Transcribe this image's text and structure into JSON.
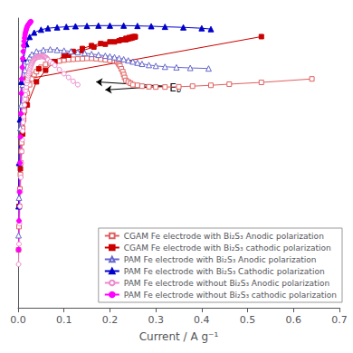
{
  "chart_data": {
    "type": "line",
    "xlabel": "Current / A g⁻¹",
    "xlim": [
      0,
      0.7
    ],
    "xticks": [
      {
        "value": 0,
        "label": "0.0"
      },
      0.1,
      0.2,
      0.3,
      0.4,
      0.5,
      0.6,
      0.7
    ],
    "ylim": [
      0,
      10
    ],
    "tick_labels": "x",
    "grid": false,
    "legend": "lower right",
    "series": [
      {
        "name": "CGAM Fe electrode with Bi₂S₃ Anodic polarization",
        "color": "#e06060",
        "marker": "open square",
        "line_style": "solid",
        "x": [
          0.001,
          0.002,
          0.003,
          0.004,
          0.005,
          0.006,
          0.007,
          0.008,
          0.009,
          0.01,
          0.012,
          0.014,
          0.016,
          0.018,
          0.02,
          0.025,
          0.03,
          0.035,
          0.04,
          0.05,
          0.06,
          0.07,
          0.08,
          0.09,
          0.1,
          0.11,
          0.12,
          0.13,
          0.14,
          0.15,
          0.16,
          0.17,
          0.18,
          0.19,
          0.2,
          0.21,
          0.215,
          0.218,
          0.22,
          0.222,
          0.225,
          0.228,
          0.23,
          0.232,
          0.235,
          0.24,
          0.245,
          0.25,
          0.26,
          0.27,
          0.285,
          0.3,
          0.32,
          0.35,
          0.38,
          0.42,
          0.46,
          0.53,
          0.64
        ],
        "values": [
          2.0,
          2.8,
          3.5,
          4.1,
          4.6,
          5.0,
          5.4,
          5.7,
          6.0,
          6.2,
          6.5,
          6.8,
          7.0,
          7.2,
          7.4,
          7.7,
          7.9,
          8.05,
          8.15,
          8.3,
          8.4,
          8.45,
          8.5,
          8.52,
          8.55,
          8.57,
          8.58,
          8.59,
          8.6,
          8.61,
          8.61,
          8.6,
          8.58,
          8.56,
          8.54,
          8.52,
          8.5,
          8.45,
          8.4,
          8.35,
          8.25,
          8.15,
          8.05,
          7.95,
          7.85,
          7.8,
          7.75,
          7.7,
          7.68,
          7.65,
          7.63,
          7.62,
          7.62,
          7.63,
          7.65,
          7.68,
          7.72,
          7.78,
          7.9
        ]
      },
      {
        "name": "CGAM Fe electrode with Bi₂S₃ cathodic polarization",
        "color": "#cc0000",
        "marker": "filled square",
        "line_style": "solid",
        "x": [
          0.002,
          0.005,
          0.01,
          0.02,
          0.04,
          0.06,
          0.08,
          0.1,
          0.12,
          0.14,
          0.16,
          0.18,
          0.2,
          0.22,
          0.235,
          0.24,
          0.245,
          0.248,
          0.25,
          0.252,
          0.255,
          0.255,
          0.252,
          0.248,
          0.242,
          0.235,
          0.225,
          0.21,
          0.19,
          0.165,
          0.14,
          0.11,
          0.075,
          0.045,
          0.02,
          0.53
        ],
        "values": [
          3.5,
          4.8,
          6.0,
          7.0,
          7.8,
          8.2,
          8.5,
          8.7,
          8.85,
          8.95,
          9.05,
          9.12,
          9.18,
          9.22,
          9.25,
          9.28,
          9.3,
          9.32,
          9.33,
          9.34,
          9.35,
          9.36,
          9.36,
          9.35,
          9.33,
          9.3,
          9.25,
          9.18,
          9.1,
          9.0,
          8.88,
          8.72,
          8.5,
          8.25,
          7.9,
          9.36
        ]
      },
      {
        "name": "PAM Fe electrode with Bi₂S₃ Anodic polarization",
        "color": "#6666cc",
        "marker": "open triangle",
        "line_style": "solid",
        "x": [
          0.001,
          0.002,
          0.003,
          0.005,
          0.007,
          0.01,
          0.015,
          0.02,
          0.025,
          0.03,
          0.04,
          0.055,
          0.07,
          0.085,
          0.1,
          0.115,
          0.13,
          0.145,
          0.16,
          0.175,
          0.19,
          0.2,
          0.21,
          0.22,
          0.23,
          0.24,
          0.25,
          0.26,
          0.27,
          0.285,
          0.3,
          0.32,
          0.345,
          0.375,
          0.415
        ],
        "values": [
          2.5,
          3.8,
          5.0,
          6.2,
          7.0,
          7.7,
          8.2,
          8.5,
          8.65,
          8.75,
          8.85,
          8.9,
          8.92,
          8.9,
          8.88,
          8.85,
          8.82,
          8.79,
          8.76,
          8.73,
          8.7,
          8.68,
          8.65,
          8.62,
          8.58,
          8.54,
          8.5,
          8.46,
          8.42,
          8.38,
          8.35,
          8.32,
          8.3,
          8.28,
          8.26
        ]
      },
      {
        "name": "PAM Fe electrode with Bi₂S₃ Cathodic polarization",
        "color": "#0000cc",
        "marker": "filled triangle",
        "line_style": "solid",
        "x": [
          0.001,
          0.002,
          0.004,
          0.007,
          0.012,
          0.018,
          0.025,
          0.035,
          0.05,
          0.065,
          0.085,
          0.105,
          0.125,
          0.15,
          0.175,
          0.2,
          0.23,
          0.26,
          0.29,
          0.32,
          0.36,
          0.4,
          0.42
        ],
        "values": [
          3.5,
          5.0,
          6.5,
          7.8,
          8.6,
          9.1,
          9.35,
          9.5,
          9.6,
          9.65,
          9.68,
          9.7,
          9.72,
          9.73,
          9.74,
          9.74,
          9.74,
          9.73,
          9.72,
          9.7,
          9.68,
          9.65,
          9.62
        ]
      },
      {
        "name": "PAM Fe electrode without Bi₂S₃ Anodic polarization",
        "color": "#ee88cc",
        "marker": "open circle",
        "line_style": "solid",
        "x": [
          0.001,
          0.002,
          0.003,
          0.004,
          0.005,
          0.006,
          0.007,
          0.008,
          0.009,
          0.01,
          0.011,
          0.012,
          0.013,
          0.014,
          0.015,
          0.016,
          0.017,
          0.018,
          0.019,
          0.02,
          0.021,
          0.022,
          0.023,
          0.024,
          0.025,
          0.026,
          0.027,
          0.028,
          0.029,
          0.03,
          0.031,
          0.032,
          0.033,
          0.034,
          0.035,
          0.036,
          0.037,
          0.038,
          0.039,
          0.04,
          0.041,
          0.042,
          0.043,
          0.044,
          0.045,
          0.046,
          0.047,
          0.048,
          0.049,
          0.05,
          0.051,
          0.052,
          0.053,
          0.054,
          0.055,
          0.056,
          0.057,
          0.058,
          0.059,
          0.06,
          0.061,
          0.062,
          0.063,
          0.064,
          0.065,
          0.07,
          0.075,
          0.08,
          0.09,
          0.1,
          0.11,
          0.12,
          0.13
        ],
        "values": [
          1.5,
          2.2,
          2.9,
          3.5,
          4.0,
          4.5,
          5.0,
          5.4,
          5.8,
          6.1,
          6.4,
          6.6,
          6.8,
          7.0,
          7.2,
          7.35,
          7.5,
          7.62,
          7.74,
          7.84,
          7.93,
          8.01,
          8.08,
          8.14,
          8.2,
          8.25,
          8.3,
          8.35,
          8.39,
          8.43,
          8.47,
          8.5,
          8.53,
          8.55,
          8.57,
          8.59,
          8.61,
          8.62,
          8.63,
          8.64,
          8.65,
          8.65,
          8.66,
          8.66,
          8.67,
          8.67,
          8.67,
          8.68,
          8.68,
          8.68,
          8.68,
          8.68,
          8.68,
          8.68,
          8.68,
          8.67,
          8.67,
          8.66,
          8.65,
          8.64,
          8.63,
          8.62,
          8.6,
          8.58,
          8.56,
          8.5,
          8.44,
          8.37,
          8.22,
          8.08,
          7.95,
          7.82,
          7.7
        ]
      },
      {
        "name": "PAM Fe electrode without Bi₂S₃ cathodic polarization",
        "color": "#ff00ff",
        "marker": "filled circle",
        "line_style": "solid",
        "x": [
          0.001,
          0.002,
          0.003,
          0.004,
          0.005,
          0.006,
          0.007,
          0.008,
          0.009,
          0.01,
          0.011,
          0.012,
          0.013,
          0.014,
          0.015,
          0.016,
          0.017,
          0.018,
          0.019,
          0.02,
          0.021,
          0.022,
          0.023,
          0.024,
          0.025,
          0.026,
          0.027,
          0.028
        ],
        "values": [
          2.0,
          3.0,
          4.0,
          5.0,
          5.9,
          6.7,
          7.4,
          7.9,
          8.3,
          8.6,
          8.85,
          9.05,
          9.2,
          9.32,
          9.42,
          9.5,
          9.56,
          9.62,
          9.67,
          9.71,
          9.74,
          9.77,
          9.79,
          9.81,
          9.83,
          9.85,
          9.87,
          9.88
        ]
      }
    ],
    "annotations": [
      {
        "text": "Eb",
        "x": 0.33,
        "y": 7.6,
        "arrows": [
          {
            "x": 0.32,
            "y": 7.65,
            "head_x": 0.17,
            "head_y": 7.8
          },
          {
            "x": 0.32,
            "y": 7.65,
            "head_x": 0.19,
            "head_y": 7.52
          }
        ]
      }
    ]
  }
}
